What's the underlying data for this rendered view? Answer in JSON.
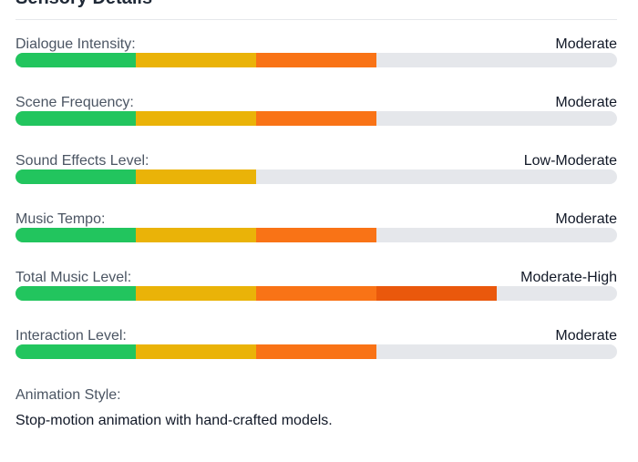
{
  "section": {
    "title": "Sensory Details"
  },
  "segment_colors": [
    "#22c55e",
    "#eab308",
    "#f97316",
    "#ea580c",
    "#dc2626"
  ],
  "meters": [
    {
      "label": "Dialogue Intensity:",
      "value": "Moderate",
      "filled_segments": 3,
      "total_segments": 5
    },
    {
      "label": "Scene Frequency:",
      "value": "Moderate",
      "filled_segments": 3,
      "total_segments": 5
    },
    {
      "label": "Sound Effects Level:",
      "value": "Low-Moderate",
      "filled_segments": 2,
      "total_segments": 5
    },
    {
      "label": "Music Tempo:",
      "value": "Moderate",
      "filled_segments": 3,
      "total_segments": 5
    },
    {
      "label": "Total Music Level:",
      "value": "Moderate-High",
      "filled_segments": 4,
      "total_segments": 5
    },
    {
      "label": "Interaction Level:",
      "value": "Moderate",
      "filled_segments": 3,
      "total_segments": 5
    }
  ],
  "animation_style": {
    "label": "Animation Style:",
    "value": "Stop-motion animation with hand-crafted models."
  }
}
